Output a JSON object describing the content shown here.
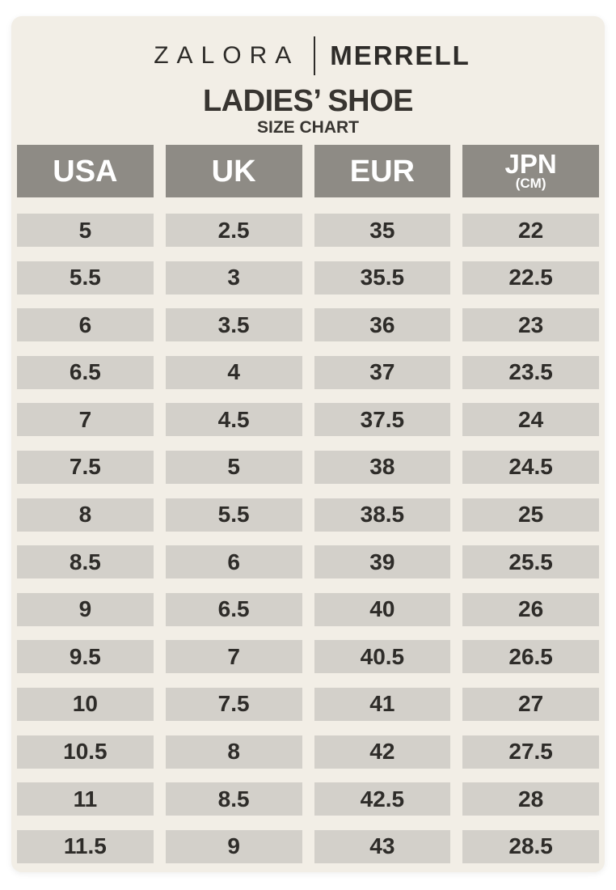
{
  "colors": {
    "page_background": "#ffffff",
    "card_background": "#f2eee6",
    "header_bg": "#8e8b85",
    "header_text": "#ffffff",
    "cell_bg": "#d3d0ca",
    "cell_text": "#2e2c29",
    "title_text": "#383531",
    "logo_text": "#2e2c29"
  },
  "logo": {
    "brand_left": "ZALORA",
    "brand_right": "MERRELL"
  },
  "title": "LADIES’ SHOE",
  "subtitle": "SIZE CHART",
  "table": {
    "headers": [
      {
        "label": "USA",
        "sub": ""
      },
      {
        "label": "UK",
        "sub": ""
      },
      {
        "label": "EUR",
        "sub": ""
      },
      {
        "label": "JPN",
        "sub": "(CM)"
      }
    ],
    "rows": [
      [
        "5",
        "2.5",
        "35",
        "22"
      ],
      [
        "5.5",
        "3",
        "35.5",
        "22.5"
      ],
      [
        "6",
        "3.5",
        "36",
        "23"
      ],
      [
        "6.5",
        "4",
        "37",
        "23.5"
      ],
      [
        "7",
        "4.5",
        "37.5",
        "24"
      ],
      [
        "7.5",
        "5",
        "38",
        "24.5"
      ],
      [
        "8",
        "5.5",
        "38.5",
        "25"
      ],
      [
        "8.5",
        "6",
        "39",
        "25.5"
      ],
      [
        "9",
        "6.5",
        "40",
        "26"
      ],
      [
        "9.5",
        "7",
        "40.5",
        "26.5"
      ],
      [
        "10",
        "7.5",
        "41",
        "27"
      ],
      [
        "10.5",
        "8",
        "42",
        "27.5"
      ],
      [
        "11",
        "8.5",
        "42.5",
        "28"
      ],
      [
        "11.5",
        "9",
        "43",
        "28.5"
      ]
    ]
  },
  "chart_data": {
    "type": "table",
    "title": "LADIES’ SHOE SIZE CHART",
    "brand": "ZALORA | MERRELL",
    "columns": [
      "USA",
      "UK",
      "EUR",
      "JPN (CM)"
    ],
    "rows": [
      [
        "5",
        "2.5",
        "35",
        "22"
      ],
      [
        "5.5",
        "3",
        "35.5",
        "22.5"
      ],
      [
        "6",
        "3.5",
        "36",
        "23"
      ],
      [
        "6.5",
        "4",
        "37",
        "23.5"
      ],
      [
        "7",
        "4.5",
        "37.5",
        "24"
      ],
      [
        "7.5",
        "5",
        "38",
        "24.5"
      ],
      [
        "8",
        "5.5",
        "38.5",
        "25"
      ],
      [
        "8.5",
        "6",
        "39",
        "25.5"
      ],
      [
        "9",
        "6.5",
        "40",
        "26"
      ],
      [
        "9.5",
        "7",
        "40.5",
        "26.5"
      ],
      [
        "10",
        "7.5",
        "41",
        "27"
      ],
      [
        "10.5",
        "8",
        "42",
        "27.5"
      ],
      [
        "11",
        "8.5",
        "42.5",
        "28"
      ],
      [
        "11.5",
        "9",
        "43",
        "28.5"
      ]
    ]
  }
}
